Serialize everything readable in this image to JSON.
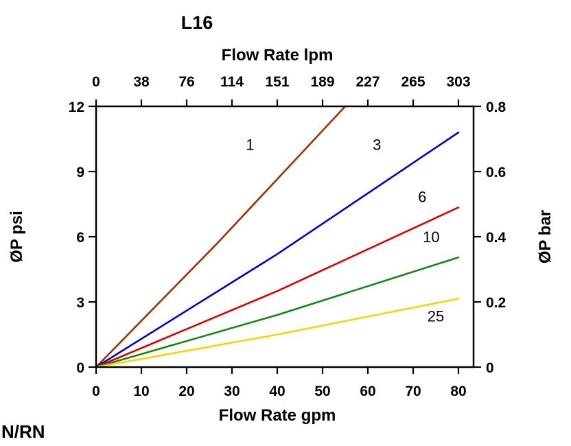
{
  "title": "L16",
  "corner_label": "N/RN",
  "chart_data": {
    "type": "line",
    "title": "L16",
    "top_axis": {
      "label": "Flow Rate lpm",
      "ticks": [
        "0",
        "38",
        "76",
        "114",
        "151",
        "189",
        "227",
        "265",
        "303"
      ],
      "range": [
        0,
        303
      ]
    },
    "bottom_axis": {
      "label": "Flow Rate gpm",
      "ticks": [
        "0",
        "10",
        "20",
        "30",
        "40",
        "50",
        "60",
        "70",
        "80"
      ],
      "range": [
        0,
        80
      ]
    },
    "left_axis": {
      "label": "ØP psi",
      "ticks": [
        "0",
        "3",
        "6",
        "9",
        "12"
      ],
      "range": [
        0,
        12
      ]
    },
    "right_axis": {
      "label": "ØP bar",
      "ticks": [
        "0",
        "0.2",
        "0.4",
        "0.6",
        "0.8"
      ],
      "range": [
        0,
        0.8
      ]
    },
    "series": [
      {
        "name": "1",
        "color": "#993300",
        "points_gpm_psi": [
          [
            0,
            0
          ],
          [
            27,
            5.75
          ],
          [
            55,
            12
          ]
        ],
        "label_at": [
          34,
          10.0
        ]
      },
      {
        "name": "3",
        "color": "#0000cc",
        "points_gpm_psi": [
          [
            0,
            0
          ],
          [
            40,
            5.2
          ],
          [
            80,
            10.8
          ]
        ],
        "label_at": [
          62,
          10.0
        ]
      },
      {
        "name": "6",
        "color": "#e00000",
        "points_gpm_psi": [
          [
            0,
            0
          ],
          [
            40,
            3.5
          ],
          [
            80,
            7.35
          ]
        ],
        "label_at": [
          72,
          7.6
        ]
      },
      {
        "name": "10",
        "color": "#118811",
        "points_gpm_psi": [
          [
            0,
            0
          ],
          [
            40,
            2.4
          ],
          [
            80,
            5.05
          ]
        ],
        "label_at": [
          74,
          5.75
        ]
      },
      {
        "name": "25",
        "color": "#ffd200",
        "points_gpm_psi": [
          [
            0,
            0
          ],
          [
            40,
            1.5
          ],
          [
            80,
            3.15
          ]
        ],
        "label_at": [
          75,
          2.1
        ]
      }
    ]
  }
}
